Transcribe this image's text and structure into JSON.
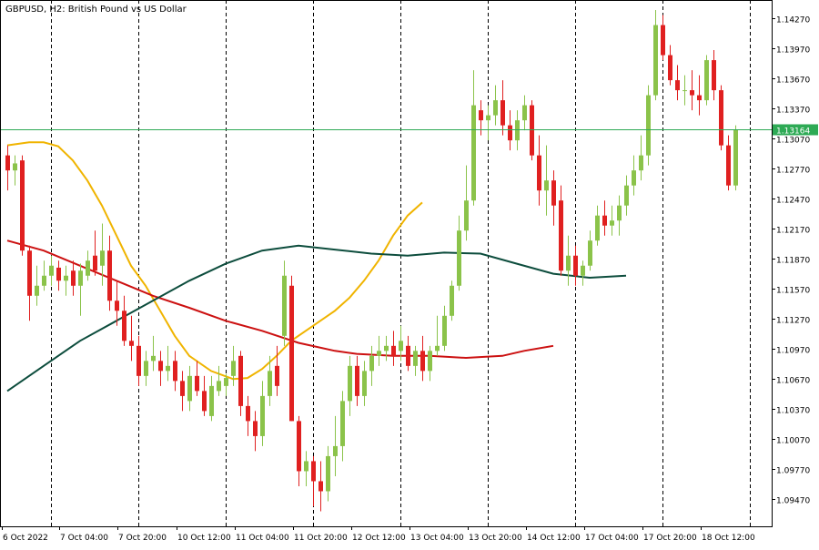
{
  "header": {
    "symbol": "GBPUSD",
    "timeframe": "H2",
    "description": "British Pound vs US Dollar",
    "title": "GBPUSD, H2:  British Pound vs US Dollar"
  },
  "colors": {
    "bull": "#8bc34a",
    "bear": "#e02020",
    "ma_fast": "#f0b400",
    "ma_mid": "#cc1111",
    "ma_slow": "#0d4d3d",
    "price_line": "#2eaa55",
    "price_box": "#2eaa55",
    "grid": "#000000"
  },
  "chart_data": {
    "type": "candlestick",
    "title": "GBPUSD, H2:  British Pound vs US Dollar",
    "ylim": [
      1.092,
      1.1445
    ],
    "y_ticks": [
      1.0947,
      1.0977,
      1.1007,
      1.1037,
      1.1067,
      1.1097,
      1.1127,
      1.1157,
      1.1187,
      1.1217,
      1.1247,
      1.1277,
      1.1307,
      1.1337,
      1.1367,
      1.1397,
      1.1427
    ],
    "y_tick_labels": [
      "1.09470",
      "1.09770",
      "1.10070",
      "1.10370",
      "1.10670",
      "1.10970",
      "1.11270",
      "1.11570",
      "1.11870",
      "1.12170",
      "1.12470",
      "1.12770",
      "1.13070",
      "1.13370",
      "1.13670",
      "1.13970",
      "1.14270"
    ],
    "x_tick_labels": [
      "6 Oct 2022",
      "7 Oct 04:00",
      "7 Oct 20:00",
      "10 Oct 12:00",
      "11 Oct 04:00",
      "11 Oct 20:00",
      "12 Oct 12:00",
      "13 Oct 04:00",
      "13 Oct 20:00",
      "14 Oct 12:00",
      "17 Oct 04:00",
      "17 Oct 20:00",
      "18 Oct 12:00"
    ],
    "x_tick_bars": [
      0,
      8,
      16,
      24,
      32,
      40,
      48,
      56,
      64,
      72,
      80,
      88,
      96
    ],
    "grid_bars": [
      6,
      18,
      30,
      42,
      54,
      66,
      78,
      90,
      102
    ],
    "current_price": 1.13164,
    "current_price_label": "1.13164",
    "candles": [
      [
        1.129,
        1.13,
        1.1255,
        1.1275
      ],
      [
        1.1275,
        1.129,
        1.126,
        1.1282
      ],
      [
        1.1285,
        1.129,
        1.119,
        1.1195
      ],
      [
        1.1195,
        1.12,
        1.1125,
        1.115
      ],
      [
        1.115,
        1.118,
        1.114,
        1.116
      ],
      [
        1.116,
        1.1185,
        1.1155,
        1.117
      ],
      [
        1.117,
        1.119,
        1.116,
        1.118
      ],
      [
        1.1178,
        1.1185,
        1.1155,
        1.1165
      ],
      [
        1.1165,
        1.118,
        1.115,
        1.117
      ],
      [
        1.1175,
        1.1185,
        1.115,
        1.116
      ],
      [
        1.116,
        1.1182,
        1.113,
        1.1175
      ],
      [
        1.117,
        1.1195,
        1.1165,
        1.1185
      ],
      [
        1.119,
        1.1215,
        1.117,
        1.1175
      ],
      [
        1.118,
        1.1222,
        1.116,
        1.1195
      ],
      [
        1.1195,
        1.121,
        1.1135,
        1.1145
      ],
      [
        1.1145,
        1.1165,
        1.112,
        1.1135
      ],
      [
        1.1135,
        1.115,
        1.11,
        1.1105
      ],
      [
        1.1105,
        1.113,
        1.1085,
        1.11
      ],
      [
        1.11,
        1.111,
        1.106,
        1.107
      ],
      [
        1.107,
        1.1095,
        1.106,
        1.1085
      ],
      [
        1.1085,
        1.111,
        1.1075,
        1.109
      ],
      [
        1.1085,
        1.1095,
        1.106,
        1.1075
      ],
      [
        1.1075,
        1.11,
        1.1065,
        1.108
      ],
      [
        1.1085,
        1.1095,
        1.1055,
        1.1065
      ],
      [
        1.1065,
        1.1075,
        1.1035,
        1.105
      ],
      [
        1.1045,
        1.108,
        1.1035,
        1.107
      ],
      [
        1.107,
        1.1085,
        1.105,
        1.1055
      ],
      [
        1.1055,
        1.107,
        1.103,
        1.1035
      ],
      [
        1.103,
        1.107,
        1.1025,
        1.106
      ],
      [
        1.1055,
        1.108,
        1.105,
        1.1065
      ],
      [
        1.106,
        1.1072,
        1.105,
        1.1068
      ],
      [
        1.107,
        1.11,
        1.106,
        1.1085
      ],
      [
        1.109,
        1.1095,
        1.103,
        1.104
      ],
      [
        1.104,
        1.105,
        1.101,
        1.1025
      ],
      [
        1.1025,
        1.1035,
        1.0995,
        1.101
      ],
      [
        1.101,
        1.1065,
        1.1,
        1.105
      ],
      [
        1.105,
        1.109,
        1.104,
        1.1075
      ],
      [
        1.108,
        1.11,
        1.105,
        1.106
      ],
      [
        1.111,
        1.1185,
        1.11,
        1.117
      ],
      [
        1.116,
        1.117,
        1.1025,
        1.1025
      ],
      [
        1.1025,
        1.103,
        1.096,
        1.0975
      ],
      [
        1.0975,
        1.0995,
        1.096,
        1.0985
      ],
      [
        1.0985,
        1.099,
        1.094,
        1.0965
      ],
      [
        1.0965,
        1.0985,
        1.0935,
        1.0955
      ],
      [
        1.0955,
        1.1,
        1.0945,
        1.099
      ],
      [
        1.099,
        1.103,
        1.097,
        1.1
      ],
      [
        1.1,
        1.1055,
        1.0985,
        1.1045
      ],
      [
        1.1045,
        1.109,
        1.103,
        1.108
      ],
      [
        1.108,
        1.109,
        1.104,
        1.105
      ],
      [
        1.105,
        1.1085,
        1.104,
        1.1075
      ],
      [
        1.1075,
        1.11,
        1.106,
        1.109
      ],
      [
        1.109,
        1.111,
        1.108,
        1.1095
      ],
      [
        1.1095,
        1.111,
        1.1085,
        1.11
      ],
      [
        1.11,
        1.1115,
        1.108,
        1.109
      ],
      [
        1.1095,
        1.112,
        1.1085,
        1.1105
      ],
      [
        1.11,
        1.111,
        1.1075,
        1.108
      ],
      [
        1.108,
        1.11,
        1.107,
        1.1095
      ],
      [
        1.1095,
        1.111,
        1.1065,
        1.1075
      ],
      [
        1.1075,
        1.11,
        1.1065,
        1.1095
      ],
      [
        1.1095,
        1.113,
        1.109,
        1.11
      ],
      [
        1.11,
        1.114,
        1.1095,
        1.113
      ],
      [
        1.113,
        1.1165,
        1.1125,
        1.116
      ],
      [
        1.116,
        1.123,
        1.1155,
        1.1215
      ],
      [
        1.1215,
        1.128,
        1.1205,
        1.1245
      ],
      [
        1.1245,
        1.1375,
        1.124,
        1.134
      ],
      [
        1.1335,
        1.1345,
        1.131,
        1.1325
      ],
      [
        1.1325,
        1.134,
        1.1305,
        1.133
      ],
      [
        1.133,
        1.136,
        1.132,
        1.1345
      ],
      [
        1.1345,
        1.1365,
        1.131,
        1.132
      ],
      [
        1.132,
        1.1335,
        1.1295,
        1.1305
      ],
      [
        1.1305,
        1.1335,
        1.1295,
        1.1325
      ],
      [
        1.1325,
        1.135,
        1.1315,
        1.134
      ],
      [
        1.134,
        1.1345,
        1.1285,
        1.129
      ],
      [
        1.129,
        1.131,
        1.124,
        1.1255
      ],
      [
        1.1255,
        1.13,
        1.123,
        1.1265
      ],
      [
        1.1265,
        1.1275,
        1.122,
        1.124
      ],
      [
        1.1245,
        1.126,
        1.117,
        1.1175
      ],
      [
        1.1175,
        1.121,
        1.116,
        1.119
      ],
      [
        1.119,
        1.12,
        1.116,
        1.117
      ],
      [
        1.117,
        1.1185,
        1.116,
        1.118
      ],
      [
        1.118,
        1.1215,
        1.1175,
        1.1205
      ],
      [
        1.1205,
        1.124,
        1.12,
        1.123
      ],
      [
        1.123,
        1.1245,
        1.121,
        1.122
      ],
      [
        1.122,
        1.124,
        1.121,
        1.1225
      ],
      [
        1.1225,
        1.125,
        1.121,
        1.124
      ],
      [
        1.124,
        1.127,
        1.123,
        1.126
      ],
      [
        1.126,
        1.129,
        1.125,
        1.1275
      ],
      [
        1.1275,
        1.131,
        1.1265,
        1.129
      ],
      [
        1.129,
        1.136,
        1.128,
        1.135
      ],
      [
        1.135,
        1.1435,
        1.1345,
        1.142
      ],
      [
        1.142,
        1.143,
        1.1385,
        1.139
      ],
      [
        1.139,
        1.14,
        1.136,
        1.1365
      ],
      [
        1.1365,
        1.138,
        1.1345,
        1.1355
      ],
      [
        1.1355,
        1.137,
        1.134,
        1.1355
      ],
      [
        1.1355,
        1.1375,
        1.1335,
        1.135
      ],
      [
        1.135,
        1.137,
        1.133,
        1.1345
      ],
      [
        1.1345,
        1.139,
        1.134,
        1.1385
      ],
      [
        1.1385,
        1.1395,
        1.1345,
        1.1355
      ],
      [
        1.1355,
        1.136,
        1.1295,
        1.13
      ],
      [
        1.13,
        1.131,
        1.1255,
        1.126
      ],
      [
        1.126,
        1.132,
        1.1255,
        1.1316
      ]
    ],
    "series": [
      {
        "name": "MA fast",
        "color": "#f0b400",
        "points": [
          [
            0,
            1.13
          ],
          [
            6,
            1.1303
          ],
          [
            10,
            1.1303
          ],
          [
            14,
            1.1299
          ],
          [
            18,
            1.1285
          ],
          [
            22,
            1.1265
          ],
          [
            26,
            1.124
          ],
          [
            30,
            1.121
          ],
          [
            34,
            1.118
          ],
          [
            38,
            1.116
          ],
          [
            42,
            1.1135
          ],
          [
            46,
            1.111
          ],
          [
            50,
            1.109
          ],
          [
            56,
            1.1075
          ],
          [
            62,
            1.1067
          ],
          [
            66,
            1.1068
          ],
          [
            70,
            1.1077
          ],
          [
            74,
            1.109
          ],
          [
            78,
            1.1105
          ],
          [
            82,
            1.1115
          ],
          [
            86,
            1.1125
          ],
          [
            90,
            1.1135
          ],
          [
            94,
            1.1148
          ],
          [
            98,
            1.1165
          ],
          [
            102,
            1.1185
          ],
          [
            106,
            1.121
          ],
          [
            110,
            1.123
          ],
          [
            114,
            1.1243
          ]
        ]
      },
      {
        "name": "MA mid",
        "color": "#cc1111",
        "points": [
          [
            0,
            1.1205
          ],
          [
            10,
            1.1195
          ],
          [
            20,
            1.118
          ],
          [
            30,
            1.1165
          ],
          [
            40,
            1.115
          ],
          [
            50,
            1.1138
          ],
          [
            60,
            1.1125
          ],
          [
            70,
            1.1115
          ],
          [
            80,
            1.1103
          ],
          [
            90,
            1.1095
          ],
          [
            96,
            1.1092
          ],
          [
            106,
            1.109
          ],
          [
            116,
            1.109
          ],
          [
            126,
            1.1088
          ],
          [
            136,
            1.109
          ],
          [
            142,
            1.1095
          ],
          [
            150,
            1.11
          ]
        ]
      },
      {
        "name": "MA slow",
        "color": "#0d4d3d",
        "points": [
          [
            0,
            1.1055
          ],
          [
            10,
            1.108
          ],
          [
            20,
            1.1105
          ],
          [
            30,
            1.1125
          ],
          [
            40,
            1.1145
          ],
          [
            50,
            1.1165
          ],
          [
            60,
            1.1182
          ],
          [
            70,
            1.1195
          ],
          [
            80,
            1.12
          ],
          [
            90,
            1.1196
          ],
          [
            100,
            1.1192
          ],
          [
            110,
            1.119
          ],
          [
            120,
            1.1193
          ],
          [
            130,
            1.1192
          ],
          [
            140,
            1.1182
          ],
          [
            150,
            1.1172
          ],
          [
            160,
            1.1168
          ],
          [
            170,
            1.117
          ]
        ]
      }
    ]
  }
}
